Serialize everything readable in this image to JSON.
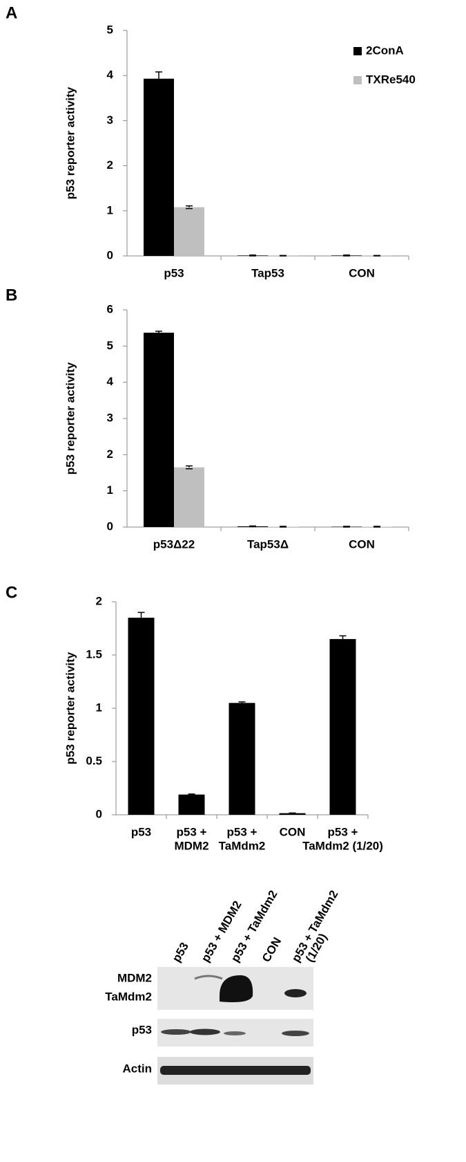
{
  "chart_data": [
    {
      "type": "bar",
      "label": "A",
      "y_label": "p53 reporter activity",
      "categories": [
        [
          "p53"
        ],
        [
          "Tap53"
        ],
        [
          "CON"
        ]
      ],
      "series": [
        {
          "name": "2ConA",
          "color": "#000000",
          "values": [
            3.93,
            0.01,
            0.01
          ],
          "errors": [
            0.15,
            0.01,
            0.01
          ]
        },
        {
          "name": "TXRe540",
          "color": "#bfbfbf",
          "values": [
            1.08,
            0.005,
            0.005
          ],
          "errors": [
            0.03,
            0.005,
            0.005
          ]
        }
      ],
      "ylim": [
        0,
        5
      ],
      "yticks": [
        0,
        1,
        2,
        3,
        4,
        5
      ],
      "legend": "top-right"
    },
    {
      "type": "bar",
      "label": "B",
      "y_label": "p53 reporter activity",
      "categories": [
        [
          "p53Δ22"
        ],
        [
          "Tap53Δ"
        ],
        [
          "CON"
        ]
      ],
      "series": [
        {
          "color": "#000000",
          "values": [
            5.37,
            0.02,
            0.01
          ],
          "errors": [
            0.04,
            0.01,
            0.01
          ]
        },
        {
          "color": "#bfbfbf",
          "values": [
            1.65,
            0.01,
            0.01
          ],
          "errors": [
            0.04,
            0.01,
            0.01
          ]
        }
      ],
      "ylim": [
        0,
        6
      ],
      "yticks": [
        0,
        1,
        2,
        3,
        4,
        5,
        6
      ]
    },
    {
      "type": "bar",
      "label": "C",
      "y_label": "p53 reporter activity",
      "categories": [
        [
          "p53"
        ],
        [
          "p53 +",
          "MDM2"
        ],
        [
          "p53 +",
          "TaMdm2"
        ],
        [
          "CON"
        ],
        [
          "p53 +",
          "TaMdm2 (1/20)"
        ]
      ],
      "series": [
        {
          "color": "#000000",
          "values": [
            1.85,
            0.19,
            1.05,
            0.015,
            1.65
          ],
          "errors": [
            0.05,
            0.005,
            0.01,
            0.002,
            0.03
          ]
        }
      ],
      "ylim": [
        0,
        2
      ],
      "yticks": [
        0,
        0.5,
        1,
        1.5,
        2
      ]
    }
  ],
  "blot": {
    "lanes": [
      [
        "p53"
      ],
      [
        "p53 + MDM2"
      ],
      [
        "p53 + TaMdm2"
      ],
      [
        "CON"
      ],
      [
        "p53 + TaMdm2",
        "(1/20)"
      ]
    ],
    "rows": [
      [
        "MDM2",
        "TaMdm2"
      ],
      [
        "p53"
      ],
      [
        "Actin"
      ]
    ]
  }
}
